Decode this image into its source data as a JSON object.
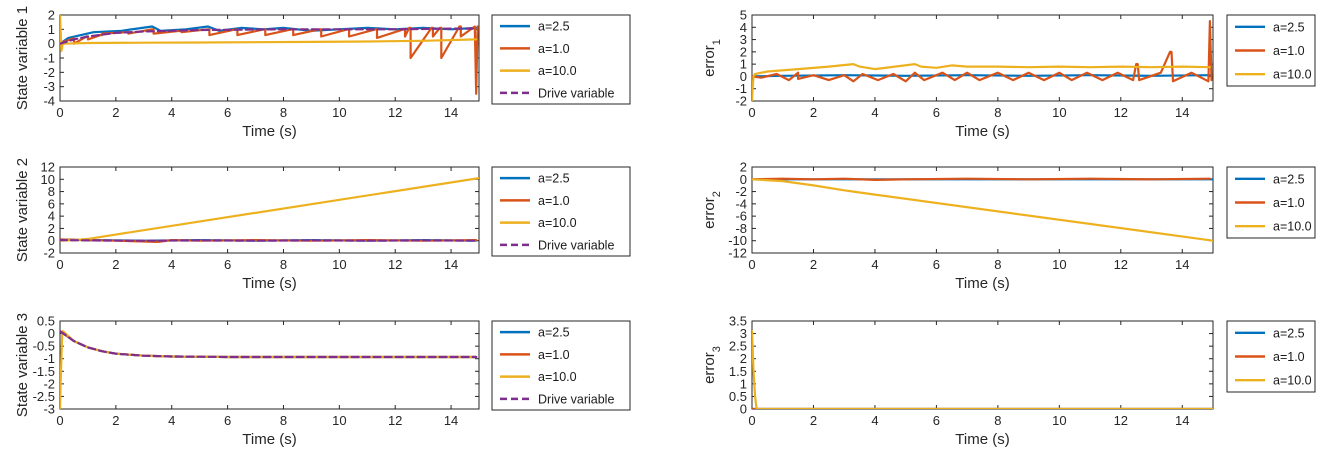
{
  "colors": {
    "a25": "#0072BD",
    "a10": "#D95319",
    "a100": "#EDB120",
    "drive": "#7E2F8E"
  },
  "chart_data": [
    {
      "id": "state1",
      "type": "line",
      "ylabel": "State variable 1",
      "ylabel_sub": "",
      "xlabel": "Time (s)",
      "xlim": [
        0,
        15
      ],
      "ylim": [
        -4,
        2
      ],
      "xticks": [
        0,
        2,
        4,
        6,
        8,
        10,
        12,
        14
      ],
      "yticks": [
        -4,
        -3,
        -2,
        -1,
        0,
        1,
        2
      ],
      "ytick_labels": [
        "-4",
        "-3",
        "-2",
        "-1",
        "0",
        "1",
        "2"
      ],
      "legend": [
        "a=2.5",
        "a=1.0",
        "a=10.0",
        "Drive variable"
      ],
      "series": [
        {
          "name": "a=2.5",
          "color": "a25",
          "dash": false,
          "x": [
            0,
            0.3,
            1.2,
            2.2,
            3.3,
            3.6,
            4.5,
            5.3,
            5.7,
            6.5,
            7.3,
            8.0,
            9.0,
            10.0,
            11.0,
            12.0,
            13.0,
            14.0,
            14.9
          ],
          "y": [
            0,
            0.4,
            0.8,
            0.9,
            1.2,
            0.9,
            1.0,
            1.2,
            0.9,
            1.1,
            1.0,
            1.1,
            0.9,
            1.0,
            1.1,
            1.0,
            1.1,
            1.0,
            1.1
          ]
        },
        {
          "name": "a=1.0",
          "color": "a10",
          "dash": false,
          "x": [
            0,
            0.05,
            0.1,
            0.45,
            0.5,
            0.5,
            0.95,
            1.0,
            1.0,
            1.45,
            1.5,
            1.5,
            2.4,
            2.45,
            2.45,
            3.3,
            3.35,
            3.35,
            4.3,
            4.35,
            4.35,
            5.3,
            5.35,
            5.35,
            6.3,
            6.35,
            6.35,
            7.3,
            7.35,
            7.35,
            8.3,
            8.35,
            8.35,
            9.3,
            9.35,
            9.35,
            10.3,
            10.35,
            10.35,
            11.3,
            11.35,
            11.35,
            12.3,
            12.35,
            12.35,
            12.5,
            12.55,
            12.55,
            13.3,
            13.35,
            13.35,
            13.6,
            13.65,
            13.65,
            14.3,
            14.35,
            14.35,
            14.85,
            14.9,
            14.95
          ],
          "y": [
            0,
            0.1,
            0.1,
            0.35,
            0.35,
            0.0,
            0.5,
            0.5,
            0.3,
            0.6,
            0.6,
            0.7,
            0.8,
            0.8,
            0.7,
            1.0,
            1.0,
            0.7,
            0.9,
            0.9,
            0.8,
            1.0,
            1.0,
            0.6,
            1.0,
            1.0,
            0.6,
            1.0,
            1.0,
            0.6,
            1.0,
            1.0,
            0.6,
            1.0,
            1.0,
            0.5,
            1.0,
            1.0,
            0.5,
            1.0,
            1.0,
            0.4,
            1.0,
            1.0,
            0.5,
            1.1,
            1.1,
            -1.0,
            1.1,
            1.1,
            0.5,
            1.1,
            1.1,
            -1.0,
            1.2,
            1.2,
            0.5,
            1.2,
            -3.5,
            1.2
          ]
        },
        {
          "name": "a=10.0",
          "color": "a100",
          "dash": false,
          "x": [
            0,
            0.02,
            0.05,
            0.1,
            1.0,
            3.0,
            5.0,
            7.0,
            9.0,
            11.0,
            13.0,
            14.9
          ],
          "y": [
            2.0,
            1.0,
            -0.5,
            0.0,
            0.05,
            0.07,
            0.08,
            0.1,
            0.12,
            0.15,
            0.2,
            0.3
          ]
        },
        {
          "name": "Drive variable",
          "color": "drive",
          "dash": true,
          "x": [
            0,
            0.5,
            1.0,
            2.0,
            3.0,
            4.0,
            5.0,
            6.0,
            8.0,
            10.0,
            12.0,
            14.0,
            14.9
          ],
          "y": [
            0,
            0.3,
            0.5,
            0.75,
            0.85,
            0.9,
            0.95,
            0.97,
            1.0,
            1.0,
            1.0,
            1.05,
            1.05
          ]
        }
      ]
    },
    {
      "id": "error1",
      "type": "line",
      "ylabel": "error",
      "ylabel_sub": "1",
      "xlabel": "Time (s)",
      "xlim": [
        0,
        15
      ],
      "ylim": [
        -2,
        5
      ],
      "xticks": [
        0,
        2,
        4,
        6,
        8,
        10,
        12,
        14
      ],
      "yticks": [
        -2,
        -1,
        0,
        1,
        2,
        3,
        4,
        5
      ],
      "ytick_labels": [
        "-2",
        "-1",
        "0",
        "1",
        "2",
        "3",
        "4",
        "5"
      ],
      "legend": [
        "a=2.5",
        "a=1.0",
        "a=10.0"
      ],
      "series": [
        {
          "name": "a=2.5",
          "color": "a25",
          "dash": false,
          "x": [
            0,
            1.0,
            3.0,
            5.0,
            7.0,
            9.0,
            11.0,
            13.0,
            14.9
          ],
          "y": [
            0,
            0.05,
            0.1,
            0.05,
            0.1,
            0.05,
            0.1,
            0.05,
            0.1
          ]
        },
        {
          "name": "a=1.0",
          "color": "a10",
          "dash": false,
          "x": [
            0,
            0.3,
            0.8,
            1.2,
            1.5,
            1.5,
            2.0,
            2.5,
            3.0,
            3.3,
            3.6,
            4.1,
            4.6,
            5.0,
            5.3,
            5.6,
            6.2,
            6.6,
            7.0,
            7.4,
            8.0,
            8.5,
            9.0,
            9.5,
            10.0,
            10.4,
            10.9,
            11.4,
            11.9,
            12.4,
            12.5,
            12.55,
            12.6,
            13.3,
            13.6,
            13.65,
            13.7,
            14.3,
            14.85,
            14.9,
            14.95
          ],
          "y": [
            0,
            -0.1,
            0.2,
            -0.3,
            0.3,
            -0.2,
            0.1,
            -0.3,
            0.1,
            -0.4,
            0.2,
            -0.3,
            0.2,
            -0.4,
            0.3,
            -0.3,
            0.3,
            -0.3,
            0.3,
            -0.3,
            0.3,
            -0.3,
            0.3,
            -0.3,
            0.3,
            -0.3,
            0.3,
            -0.3,
            0.3,
            -0.3,
            1.0,
            1.0,
            -0.3,
            0.3,
            2.0,
            2.0,
            -0.4,
            0.3,
            -0.4,
            4.5,
            -0.3
          ]
        },
        {
          "name": "a=10.0",
          "color": "a100",
          "dash": false,
          "x": [
            0,
            0.02,
            0.05,
            0.1,
            0.5,
            1.5,
            2.5,
            3.3,
            3.5,
            4.0,
            5.3,
            5.5,
            6.0,
            6.5,
            7.0,
            8.0,
            9.0,
            10.0,
            11.0,
            12.0,
            13.0,
            14.0,
            14.9
          ],
          "y": [
            -2.0,
            -1.0,
            0.0,
            0.2,
            0.4,
            0.6,
            0.8,
            1.0,
            0.8,
            0.6,
            1.0,
            0.8,
            0.7,
            0.9,
            0.8,
            0.8,
            0.75,
            0.8,
            0.75,
            0.8,
            0.75,
            0.8,
            0.75
          ]
        }
      ]
    },
    {
      "id": "state2",
      "type": "line",
      "ylabel": "State variable 2",
      "ylabel_sub": "",
      "xlabel": "Time (s)",
      "xlim": [
        0,
        15
      ],
      "ylim": [
        -2,
        12
      ],
      "xticks": [
        0,
        2,
        4,
        6,
        8,
        10,
        12,
        14
      ],
      "yticks": [
        -2,
        0,
        2,
        4,
        6,
        8,
        10,
        12
      ],
      "ytick_labels": [
        "-2",
        "0",
        "2",
        "4",
        "6",
        "8",
        "10",
        "12"
      ],
      "legend": [
        "a=2.5",
        "a=1.0",
        "a=10.0",
        "Drive variable"
      ],
      "series": [
        {
          "name": "a=2.5",
          "color": "a25",
          "dash": false,
          "x": [
            0,
            1.0,
            3.0,
            5.0,
            7.0,
            9.0,
            11.0,
            13.0,
            14.9
          ],
          "y": [
            0.2,
            0.1,
            0.0,
            0.1,
            0.0,
            0.1,
            0.0,
            0.1,
            0.0
          ]
        },
        {
          "name": "a=1.0",
          "color": "a10",
          "dash": false,
          "x": [
            0,
            1.0,
            2.0,
            3.5,
            4.0,
            5.0,
            7.0,
            9.0,
            11.0,
            13.0,
            14.9
          ],
          "y": [
            0.2,
            0.1,
            0.0,
            -0.2,
            0.1,
            0.0,
            0.1,
            0.0,
            0.1,
            0.0,
            0.1
          ]
        },
        {
          "name": "a=10.0",
          "color": "a100",
          "dash": false,
          "x": [
            0,
            0.5,
            1.0,
            15.0
          ],
          "y": [
            0.0,
            0.1,
            0.3,
            10.2
          ]
        },
        {
          "name": "Drive variable",
          "color": "drive",
          "dash": true,
          "x": [
            0,
            1.0,
            3.0,
            5.0,
            7.0,
            9.0,
            11.0,
            13.0,
            14.9
          ],
          "y": [
            0.1,
            0.05,
            0.0,
            0.05,
            0.0,
            0.05,
            0.0,
            0.05,
            0.0
          ]
        }
      ]
    },
    {
      "id": "error2",
      "type": "line",
      "ylabel": "error",
      "ylabel_sub": "2",
      "xlabel": "Time (s)",
      "xlim": [
        0,
        15
      ],
      "ylim": [
        -12,
        2
      ],
      "xticks": [
        0,
        2,
        4,
        6,
        8,
        10,
        12,
        14
      ],
      "yticks": [
        -12,
        -10,
        -8,
        -6,
        -4,
        -2,
        0,
        2
      ],
      "ytick_labels": [
        "-12",
        "-10",
        "-8",
        "-6",
        "-4",
        "-2",
        "0",
        "2"
      ],
      "legend": [
        "a=2.5",
        "a=1.0",
        "a=10.0"
      ],
      "series": [
        {
          "name": "a=2.5",
          "color": "a25",
          "dash": false,
          "x": [
            0,
            15.0
          ],
          "y": [
            0.0,
            0.0
          ]
        },
        {
          "name": "a=1.0",
          "color": "a10",
          "dash": false,
          "x": [
            0,
            1.0,
            2.0,
            3.0,
            4.0,
            5.0,
            7.0,
            9.0,
            11.0,
            13.0,
            14.9
          ],
          "y": [
            0.0,
            0.1,
            0.0,
            0.1,
            -0.1,
            0.0,
            0.1,
            0.0,
            0.1,
            0.0,
            0.1
          ]
        },
        {
          "name": "a=10.0",
          "color": "a100",
          "dash": false,
          "x": [
            0,
            1.0,
            2.0,
            3.0,
            3.3,
            4.0,
            15.0
          ],
          "y": [
            0.0,
            -0.3,
            -1.0,
            -1.8,
            -2.0,
            -2.5,
            -10.0
          ]
        }
      ]
    },
    {
      "id": "state3",
      "type": "line",
      "ylabel": "State variable 3",
      "ylabel_sub": "",
      "xlabel": "Time (s)",
      "xlim": [
        0,
        15
      ],
      "ylim": [
        -3,
        0.5
      ],
      "xticks": [
        0,
        2,
        4,
        6,
        8,
        10,
        12,
        14
      ],
      "yticks": [
        -3,
        -2.5,
        -2,
        -1.5,
        -1,
        -0.5,
        0,
        0.5
      ],
      "ytick_labels": [
        "-3",
        "-2.5",
        "-2",
        "-1.5",
        "-1",
        "-0.5",
        "0",
        "0.5"
      ],
      "legend": [
        "a=2.5",
        "a=1.0",
        "a=10.0",
        "Drive variable"
      ],
      "series": [
        {
          "name": "a=2.5",
          "color": "a25",
          "dash": false,
          "x": [
            0,
            0.5,
            1.0,
            1.5,
            2.0,
            3.0,
            4.0,
            5.0,
            6.0,
            8.0,
            10.0,
            12.0,
            14.9
          ],
          "y": [
            0.1,
            -0.3,
            -0.55,
            -0.7,
            -0.8,
            -0.88,
            -0.91,
            -0.92,
            -0.93,
            -0.93,
            -0.93,
            -0.93,
            -0.93
          ]
        },
        {
          "name": "a=1.0",
          "color": "a10",
          "dash": false,
          "x": [
            0,
            0.5,
            1.0,
            1.5,
            2.0,
            3.0,
            4.0,
            5.0,
            6.0,
            8.0,
            10.0,
            12.0,
            14.9
          ],
          "y": [
            0.1,
            -0.3,
            -0.55,
            -0.7,
            -0.8,
            -0.88,
            -0.91,
            -0.92,
            -0.93,
            -0.93,
            -0.93,
            -0.93,
            -0.93
          ]
        },
        {
          "name": "a=10.0",
          "color": "a100",
          "dash": false,
          "x": [
            0,
            0.02,
            0.05,
            0.08,
            0.1,
            0.5,
            1.0,
            1.5,
            2.0,
            3.0,
            4.0,
            5.0,
            6.0,
            8.0,
            10.0,
            12.0,
            14.9
          ],
          "y": [
            -3.0,
            -2.0,
            -1.0,
            0.0,
            0.1,
            -0.3,
            -0.55,
            -0.7,
            -0.8,
            -0.88,
            -0.91,
            -0.92,
            -0.93,
            -0.93,
            -0.93,
            -0.93,
            -0.93
          ]
        },
        {
          "name": "Drive variable",
          "color": "drive",
          "dash": true,
          "x": [
            0,
            0.5,
            1.0,
            1.5,
            2.0,
            3.0,
            4.0,
            5.0,
            6.0,
            8.0,
            10.0,
            12.0,
            14.9
          ],
          "y": [
            0.1,
            -0.3,
            -0.55,
            -0.7,
            -0.8,
            -0.88,
            -0.91,
            -0.92,
            -0.93,
            -0.93,
            -0.93,
            -0.93,
            -0.93
          ]
        }
      ]
    },
    {
      "id": "error3",
      "type": "line",
      "ylabel": "error",
      "ylabel_sub": "3",
      "xlabel": "Time (s)",
      "xlim": [
        0,
        15
      ],
      "ylim": [
        0,
        3.5
      ],
      "xticks": [
        0,
        2,
        4,
        6,
        8,
        10,
        12,
        14
      ],
      "yticks": [
        0,
        0.5,
        1,
        1.5,
        2,
        2.5,
        3,
        3.5
      ],
      "ytick_labels": [
        "0",
        "0.5",
        "1",
        "1.5",
        "2",
        "2.5",
        "3",
        "3.5"
      ],
      "legend": [
        "a=2.5",
        "a=1.0",
        "a=10.0"
      ],
      "series": [
        {
          "name": "a=2.5",
          "color": "a25",
          "dash": false,
          "x": [
            0,
            0.1,
            15.0
          ],
          "y": [
            0.0,
            0.0,
            0.0
          ]
        },
        {
          "name": "a=1.0",
          "color": "a10",
          "dash": false,
          "x": [
            0,
            0.1,
            15.0
          ],
          "y": [
            0.0,
            0.0,
            0.0
          ]
        },
        {
          "name": "a=10.0",
          "color": "a100",
          "dash": false,
          "x": [
            0,
            0.02,
            0.05,
            0.1,
            0.15,
            15.0
          ],
          "y": [
            3.1,
            2.5,
            1.5,
            0.5,
            0.0,
            0.0
          ]
        }
      ]
    }
  ]
}
